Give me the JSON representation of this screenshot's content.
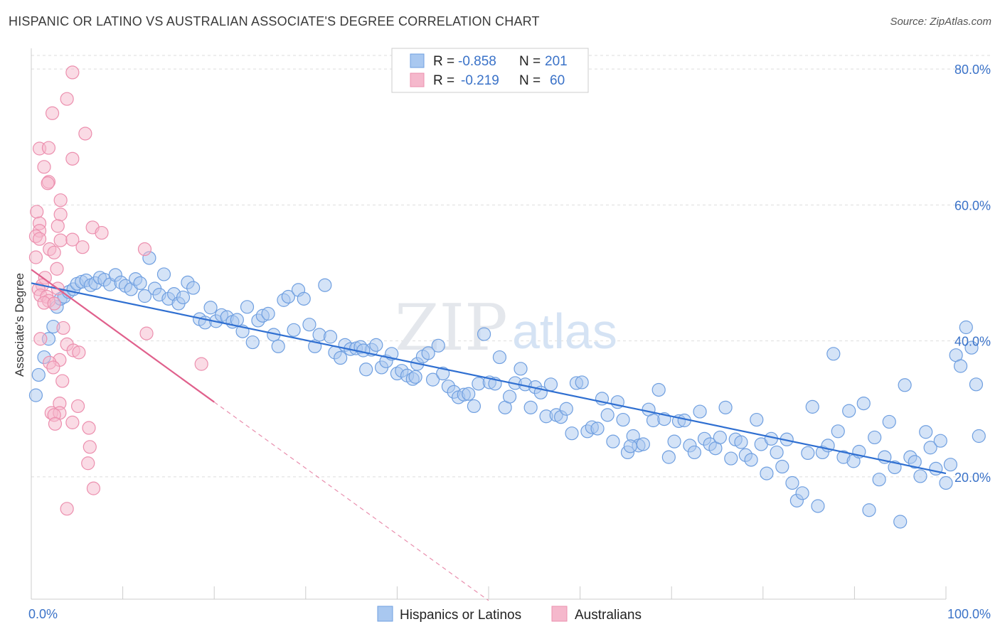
{
  "title": "HISPANIC OR LATINO VS AUSTRALIAN ASSOCIATE'S DEGREE CORRELATION CHART",
  "source": "Source: ZipAtlas.com",
  "watermark": {
    "zip": "ZIP",
    "atlas": "atlas"
  },
  "colors": {
    "blue_fill": "#a9c8f0",
    "blue_stroke": "#6f9fe0",
    "blue_line": "#2f6fd1",
    "pink_fill": "#f5b8cc",
    "pink_stroke": "#ec8fae",
    "pink_line": "#e0608c",
    "grid": "#dddddd",
    "axis_text": "#3a72c8"
  },
  "stats": [
    {
      "r_label": "R =",
      "r_value": "-0.858",
      "n_label": "N =",
      "n_value": "201",
      "color": "#a9c8f0"
    },
    {
      "r_label": "R =",
      "r_value": "-0.219",
      "n_label": "N =",
      "n_value": "60",
      "color": "#f5b8cc"
    }
  ],
  "chart_data": {
    "type": "scatter",
    "title": "HISPANIC OR LATINO VS AUSTRALIAN ASSOCIATE'S DEGREE CORRELATION CHART",
    "xlabel": "",
    "ylabel": "Associate's Degree",
    "xlim": [
      0,
      100
    ],
    "ylim": [
      2,
      82
    ],
    "x_tick_labels": [
      "0.0%",
      "100.0%"
    ],
    "y_ticks": [
      20,
      40,
      60,
      80
    ],
    "y_tick_labels": [
      "20.0%",
      "40.0%",
      "60.0%",
      "80.0%"
    ],
    "grid": true,
    "legend_position": "bottom-center",
    "series": [
      {
        "name": "Hispanics or Latinos",
        "color": "#a9c8f0",
        "trend": {
          "x": [
            0,
            100
          ],
          "y": [
            48.5,
            20.5
          ],
          "style": "solid"
        },
        "points": [
          [
            0.5,
            32
          ],
          [
            0.8,
            35
          ],
          [
            1.4,
            37.6
          ],
          [
            1.9,
            40.3
          ],
          [
            2.4,
            42.1
          ],
          [
            2.8,
            45
          ],
          [
            3.2,
            46.2
          ],
          [
            3.6,
            46.5
          ],
          [
            4.1,
            47.2
          ],
          [
            4.6,
            47.6
          ],
          [
            5.0,
            48.4
          ],
          [
            5.5,
            48.7
          ],
          [
            6.0,
            48.9
          ],
          [
            6.5,
            48.2
          ],
          [
            7.0,
            48.5
          ],
          [
            7.5,
            49.3
          ],
          [
            8.0,
            49
          ],
          [
            8.6,
            48.3
          ],
          [
            9.2,
            49.7
          ],
          [
            9.8,
            48.6
          ],
          [
            10.3,
            48.1
          ],
          [
            10.9,
            47.6
          ],
          [
            11.4,
            49.1
          ],
          [
            11.9,
            48.5
          ],
          [
            12.4,
            46.6
          ],
          [
            12.9,
            52.2
          ],
          [
            13.5,
            47.7
          ],
          [
            14.0,
            46.8
          ],
          [
            14.5,
            49.8
          ],
          [
            15.0,
            46.2
          ],
          [
            15.6,
            46.9
          ],
          [
            16.1,
            45.5
          ],
          [
            16.6,
            46.4
          ],
          [
            17.1,
            48.6
          ],
          [
            17.7,
            47.8
          ],
          [
            18.4,
            43.2
          ],
          [
            19.0,
            42.7
          ],
          [
            19.6,
            44.9
          ],
          [
            20.2,
            42.9
          ],
          [
            20.8,
            43.8
          ],
          [
            21.4,
            43.5
          ],
          [
            22.0,
            42.8
          ],
          [
            22.5,
            43.1
          ],
          [
            23.1,
            41.4
          ],
          [
            23.6,
            45
          ],
          [
            24.2,
            39.8
          ],
          [
            24.8,
            43
          ],
          [
            25.3,
            43.7
          ],
          [
            25.9,
            44
          ],
          [
            26.5,
            40.9
          ],
          [
            27.0,
            39.2
          ],
          [
            27.6,
            46
          ],
          [
            28.1,
            46.5
          ],
          [
            28.7,
            41.6
          ],
          [
            29.2,
            47.5
          ],
          [
            29.8,
            46.2
          ],
          [
            30.4,
            42.4
          ],
          [
            31.0,
            39.2
          ],
          [
            31.5,
            40.9
          ],
          [
            32.1,
            48.2
          ],
          [
            32.7,
            40.6
          ],
          [
            33.2,
            38.3
          ],
          [
            33.8,
            37.5
          ],
          [
            34.3,
            39.4
          ],
          [
            34.9,
            38.8
          ],
          [
            35.5,
            38.9
          ],
          [
            36.0,
            39.1
          ],
          [
            36.6,
            35.8
          ],
          [
            37.2,
            38.7
          ],
          [
            37.7,
            39.4
          ],
          [
            38.3,
            36.1
          ],
          [
            38.8,
            37
          ],
          [
            39.4,
            38.1
          ],
          [
            40.0,
            35.2
          ],
          [
            40.5,
            35.6
          ],
          [
            41.1,
            34.9
          ],
          [
            41.7,
            34.4
          ],
          [
            42.2,
            36.6
          ],
          [
            42.8,
            37.7
          ],
          [
            43.4,
            38.2
          ],
          [
            43.9,
            34.3
          ],
          [
            44.5,
            39.3
          ],
          [
            45.0,
            35.2
          ],
          [
            45.6,
            33.3
          ],
          [
            46.2,
            32.5
          ],
          [
            46.7,
            31.7
          ],
          [
            47.3,
            32.1
          ],
          [
            47.8,
            32.2
          ],
          [
            48.4,
            30.4
          ],
          [
            48.9,
            33.7
          ],
          [
            49.5,
            41
          ],
          [
            50.1,
            33.9
          ],
          [
            50.7,
            33.7
          ],
          [
            51.2,
            37.6
          ],
          [
            51.8,
            30.2
          ],
          [
            52.3,
            31.8
          ],
          [
            52.9,
            33.8
          ],
          [
            53.5,
            35.9
          ],
          [
            54.0,
            33.6
          ],
          [
            54.6,
            30.2
          ],
          [
            55.1,
            33.2
          ],
          [
            55.7,
            32.4
          ],
          [
            56.3,
            28.9
          ],
          [
            56.8,
            33.6
          ],
          [
            57.4,
            29.1
          ],
          [
            57.9,
            28.8
          ],
          [
            58.5,
            30
          ],
          [
            59.1,
            26.4
          ],
          [
            59.6,
            33.8
          ],
          [
            60.2,
            33.9
          ],
          [
            60.8,
            26.7
          ],
          [
            61.3,
            27.3
          ],
          [
            61.9,
            27.1
          ],
          [
            62.4,
            31.5
          ],
          [
            63.0,
            29.1
          ],
          [
            63.6,
            25.2
          ],
          [
            64.1,
            31
          ],
          [
            64.7,
            28.4
          ],
          [
            65.2,
            23.6
          ],
          [
            65.8,
            26
          ],
          [
            66.4,
            24.6
          ],
          [
            66.9,
            24.8
          ],
          [
            67.5,
            29.9
          ],
          [
            68.0,
            28.3
          ],
          [
            68.6,
            32.8
          ],
          [
            69.2,
            28.5
          ],
          [
            69.7,
            22.9
          ],
          [
            70.3,
            25.2
          ],
          [
            70.8,
            28.2
          ],
          [
            71.4,
            28.3
          ],
          [
            72.0,
            24.6
          ],
          [
            72.5,
            23.6
          ],
          [
            73.1,
            29.6
          ],
          [
            73.6,
            25.6
          ],
          [
            74.2,
            24.8
          ],
          [
            74.8,
            24.2
          ],
          [
            75.3,
            25.8
          ],
          [
            75.9,
            30.2
          ],
          [
            76.5,
            22.7
          ],
          [
            77.0,
            25.5
          ],
          [
            77.6,
            25.1
          ],
          [
            78.1,
            23.2
          ],
          [
            78.7,
            22.5
          ],
          [
            79.3,
            28.4
          ],
          [
            79.8,
            24.8
          ],
          [
            80.4,
            20.5
          ],
          [
            80.9,
            25.6
          ],
          [
            81.5,
            23.6
          ],
          [
            82.1,
            21.5
          ],
          [
            82.6,
            25.5
          ],
          [
            83.2,
            19.1
          ],
          [
            83.7,
            16.5
          ],
          [
            84.3,
            17.6
          ],
          [
            84.9,
            23.5
          ],
          [
            85.4,
            30.3
          ],
          [
            86.0,
            15.7
          ],
          [
            86.5,
            23.6
          ],
          [
            87.1,
            24.6
          ],
          [
            87.7,
            38.1
          ],
          [
            88.2,
            26.7
          ],
          [
            88.8,
            22.9
          ],
          [
            89.4,
            29.7
          ],
          [
            89.9,
            22.3
          ],
          [
            90.5,
            23.7
          ],
          [
            91.0,
            30.8
          ],
          [
            91.6,
            15.1
          ],
          [
            92.2,
            25.8
          ],
          [
            92.7,
            19.6
          ],
          [
            93.3,
            22.9
          ],
          [
            93.8,
            28.1
          ],
          [
            94.4,
            21.4
          ],
          [
            95.0,
            13.4
          ],
          [
            95.5,
            33.5
          ],
          [
            96.1,
            22.9
          ],
          [
            96.6,
            22.2
          ],
          [
            97.2,
            20.1
          ],
          [
            97.8,
            26.6
          ],
          [
            98.3,
            24.3
          ],
          [
            98.9,
            21.2
          ],
          [
            99.4,
            25.3
          ],
          [
            100.0,
            19.1
          ],
          [
            100.5,
            21.8
          ],
          [
            101.1,
            37.9
          ],
          [
            101.6,
            36.3
          ],
          [
            102.2,
            42
          ],
          [
            102.8,
            39
          ],
          [
            103.3,
            33.6
          ],
          [
            103.6,
            26
          ],
          [
            36.3,
            38.6
          ],
          [
            42.0,
            34.7
          ],
          [
            65.5,
            24.5
          ]
        ]
      },
      {
        "name": "Australians",
        "color": "#f5b8cc",
        "trend": {
          "x": [
            0,
            20
          ],
          "y": [
            50.5,
            31
          ],
          "style": "solid",
          "extension": {
            "x": [
              20,
              50
            ],
            "y": [
              31,
              1.8
            ],
            "style": "dashed"
          }
        },
        "points": [
          [
            4.5,
            79.5
          ],
          [
            3.9,
            75.6
          ],
          [
            2.3,
            73.5
          ],
          [
            5.9,
            70.5
          ],
          [
            0.9,
            68.3
          ],
          [
            1.9,
            68.4
          ],
          [
            4.5,
            66.8
          ],
          [
            1.4,
            65.6
          ],
          [
            1.9,
            63.4
          ],
          [
            1.8,
            63.2
          ],
          [
            3.2,
            60.7
          ],
          [
            0.6,
            59
          ],
          [
            3.2,
            58.6
          ],
          [
            0.9,
            57.3
          ],
          [
            2.9,
            56.9
          ],
          [
            6.7,
            56.7
          ],
          [
            0.9,
            56.2
          ],
          [
            0.5,
            55.4
          ],
          [
            7.7,
            55.9
          ],
          [
            0.9,
            55
          ],
          [
            3.2,
            54.8
          ],
          [
            4.5,
            54.9
          ],
          [
            5.6,
            53.8
          ],
          [
            2.0,
            53.5
          ],
          [
            12.4,
            53.5
          ],
          [
            0.5,
            52.3
          ],
          [
            2.5,
            53
          ],
          [
            2.8,
            50.6
          ],
          [
            1.5,
            49.3
          ],
          [
            1.2,
            48.2
          ],
          [
            2.9,
            47.7
          ],
          [
            0.8,
            47.6
          ],
          [
            1.0,
            46.7
          ],
          [
            1.7,
            46.5
          ],
          [
            1.9,
            45.9
          ],
          [
            1.4,
            45.6
          ],
          [
            2.5,
            45.5
          ],
          [
            3.5,
            41.9
          ],
          [
            1.0,
            40.3
          ],
          [
            12.6,
            41.1
          ],
          [
            3.9,
            39.5
          ],
          [
            4.6,
            38.6
          ],
          [
            5.2,
            38.3
          ],
          [
            3.1,
            37.2
          ],
          [
            2.0,
            36.8
          ],
          [
            18.6,
            36.6
          ],
          [
            2.4,
            36.1
          ],
          [
            3.4,
            34.1
          ],
          [
            3.1,
            30.8
          ],
          [
            2.2,
            29.4
          ],
          [
            5.1,
            30.4
          ],
          [
            3.1,
            29.4
          ],
          [
            2.5,
            29.1
          ],
          [
            2.6,
            27.8
          ],
          [
            4.5,
            28
          ],
          [
            6.3,
            27.2
          ],
          [
            6.4,
            24.4
          ],
          [
            6.2,
            22
          ],
          [
            6.8,
            18.3
          ],
          [
            3.9,
            15.3
          ]
        ]
      }
    ]
  },
  "legend": [
    {
      "label": "Hispanics or Latinos",
      "color": "#a9c8f0"
    },
    {
      "label": "Australians",
      "color": "#f5b8cc"
    }
  ]
}
